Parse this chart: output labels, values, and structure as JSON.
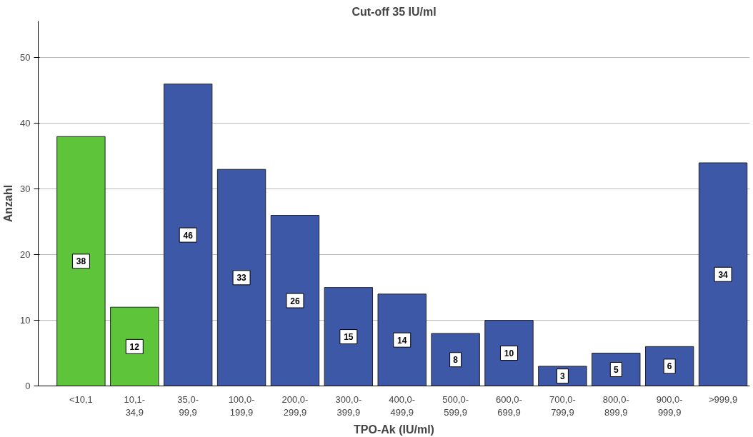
{
  "chart_data": {
    "type": "bar",
    "title": "Cut-off 35 IU/ml",
    "xlabel": "TPO-Ak (IU/ml)",
    "ylabel": "Anzahl",
    "categories": [
      "<10,1",
      "10,1-\n34,9",
      "35,0-\n99,9",
      "100,0-\n199,9",
      "200,0-\n299,9",
      "300,0-\n399,9",
      "400,0-\n499,9",
      "500,0-\n599,9",
      "600,0-\n699,9",
      "700,0-\n799,9",
      "800,0-\n899,9",
      "900,0-\n999,9",
      ">999,9"
    ],
    "values": [
      38,
      12,
      46,
      33,
      26,
      15,
      14,
      8,
      10,
      3,
      5,
      6,
      34
    ],
    "colors": [
      "#5ec43a",
      "#5ec43a",
      "#3e58a8",
      "#3e58a8",
      "#3e58a8",
      "#3e58a8",
      "#3e58a8",
      "#3e58a8",
      "#3e58a8",
      "#3e58a8",
      "#3e58a8",
      "#3e58a8",
      "#3e58a8"
    ],
    "ylim": [
      0,
      55.6
    ],
    "yticks": [
      0,
      10,
      20,
      30,
      40,
      50
    ],
    "grid": "y",
    "data_labels": true
  }
}
